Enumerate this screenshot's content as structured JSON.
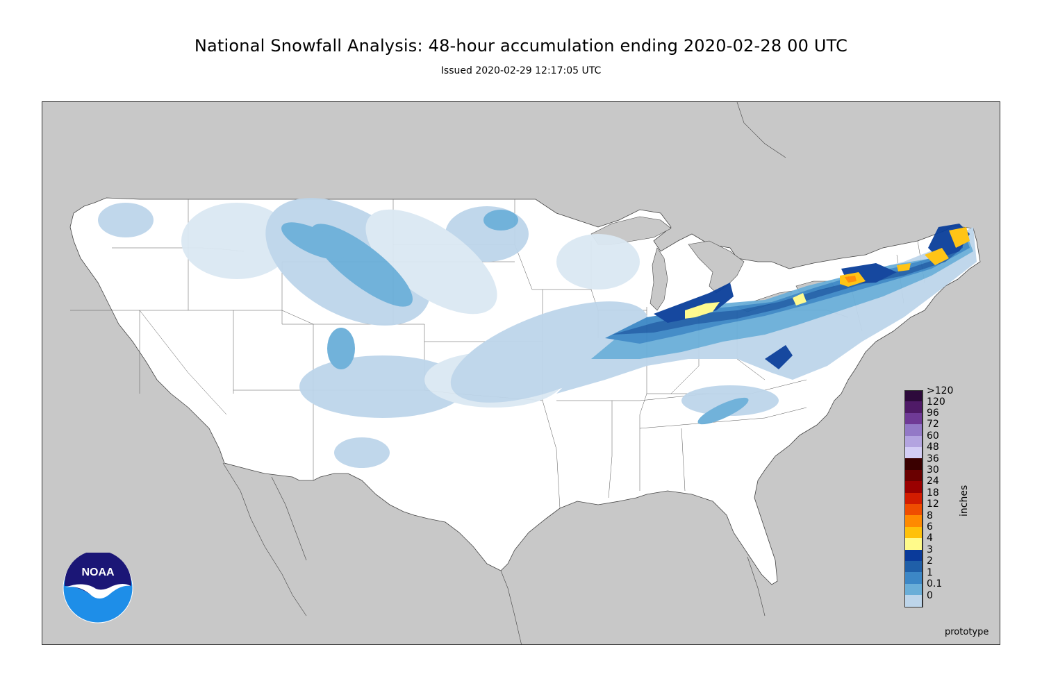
{
  "title": "National Snowfall Analysis: 48-hour accumulation ending 2020-02-28 00 UTC",
  "subtitle": "Issued 2020-02-29 12:17:05 UTC",
  "units": "inches",
  "footer_note": "prototype",
  "logo_text": "NOAA",
  "colors": {
    "background_land_outside": "#c8c8c8",
    "conus_land": "#ffffff",
    "snow_light": "#dbe8f3",
    "snow_01": "#bdd5ea",
    "snow_1": "#6aaed8",
    "snow_2": "#3c87c6",
    "snow_3": "#1f5fa8",
    "snow_4": "#0a3f9a",
    "snow_6": "#fffa8a",
    "snow_8": "#ffc10a",
    "snow_12": "#ff8a00"
  },
  "legend": [
    {
      "label": ">120",
      "color": "#2d0a3b"
    },
    {
      "label": "120",
      "color": "#4f1a67"
    },
    {
      "label": "96",
      "color": "#6f3a96"
    },
    {
      "label": "72",
      "color": "#9379c7"
    },
    {
      "label": "60",
      "color": "#b3a4e0"
    },
    {
      "label": "48",
      "color": "#d3cdf5"
    },
    {
      "label": "36",
      "color": "#3a0000"
    },
    {
      "label": "30",
      "color": "#6a0000"
    },
    {
      "label": "24",
      "color": "#9a0000"
    },
    {
      "label": "18",
      "color": "#d21c00"
    },
    {
      "label": "12",
      "color": "#ef4d00"
    },
    {
      "label": "8",
      "color": "#ff8a00"
    },
    {
      "label": "6",
      "color": "#ffc10a"
    },
    {
      "label": "4",
      "color": "#fffa8a"
    },
    {
      "label": "3",
      "color": "#0a3a9a"
    },
    {
      "label": "2",
      "color": "#1f5fa8"
    },
    {
      "label": "1",
      "color": "#3c87c6"
    },
    {
      "label": "0.1",
      "color": "#6aaed8"
    },
    {
      "label": "0",
      "color": "#bdd5ea"
    }
  ]
}
